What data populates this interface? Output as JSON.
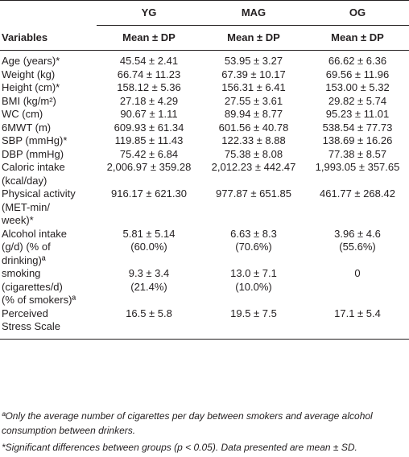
{
  "headers": {
    "groups": [
      "YG",
      "MAG",
      "OG"
    ],
    "variables": "Variables",
    "stat": "Mean ± DP"
  },
  "rows": [
    {
      "label": [
        "Age (years)*"
      ],
      "yg": [
        "45.54 ± 2.41"
      ],
      "mag": [
        "53.95 ± 3.27"
      ],
      "og": [
        "66.62 ± 6.36"
      ]
    },
    {
      "label": [
        "Weight (kg)"
      ],
      "yg": [
        "66.74 ± 11.23"
      ],
      "mag": [
        "67.39 ± 10.17"
      ],
      "og": [
        "69.56 ± 11.96"
      ]
    },
    {
      "label": [
        "Height (cm)*"
      ],
      "yg": [
        "158.12 ± 5.36"
      ],
      "mag": [
        "156.31 ± 6.41"
      ],
      "og": [
        "153.00 ± 5.32"
      ]
    },
    {
      "label": [
        "BMI (kg/m²)"
      ],
      "yg": [
        "27.18 ± 4.29"
      ],
      "mag": [
        "27.55 ± 3.61"
      ],
      "og": [
        "29.82 ± 5.74"
      ]
    },
    {
      "label": [
        "WC (cm)"
      ],
      "yg": [
        "90.67 ± 1.11"
      ],
      "mag": [
        "89.94 ± 8.77"
      ],
      "og": [
        "95.23 ± 11.01"
      ]
    },
    {
      "label": [
        "6MWT (m)"
      ],
      "yg": [
        "609.93 ± 61.34"
      ],
      "mag": [
        "601.56 ± 40.78"
      ],
      "og": [
        "538.54 ± 77.73"
      ]
    },
    {
      "label": [
        "SBP (mmHg)*"
      ],
      "yg": [
        "119.85 ± 11.43"
      ],
      "mag": [
        "122.33 ± 8.88"
      ],
      "og": [
        "138.69 ± 16.26"
      ]
    },
    {
      "label": [
        "DBP (mmHg)"
      ],
      "yg": [
        "75.42 ± 6.84"
      ],
      "mag": [
        "75.38 ± 8.08"
      ],
      "og": [
        "77.38 ± 8.57"
      ]
    },
    {
      "label": [
        "Caloric intake",
        "(kcal/day)"
      ],
      "yg": [
        "2,006.97 ± 359.28"
      ],
      "mag": [
        "2,012.23 ± 442.47"
      ],
      "og": [
        "1,993.05 ± 357.65"
      ]
    },
    {
      "label": [
        "Physical activity",
        "(MET-min/",
        "week)*"
      ],
      "yg": [
        "916.17 ± 621.30"
      ],
      "mag": [
        "977.87 ± 651.85"
      ],
      "og": [
        "461.77 ± 268.42"
      ]
    },
    {
      "label": [
        "Alcohol intake",
        "(g/d) (% of",
        "drinking)ª"
      ],
      "yg": [
        "5.81 ± 5.14",
        "(60.0%)"
      ],
      "mag": [
        "6.63 ± 8.3",
        "(70.6%)"
      ],
      "og": [
        "3.96 ± 4.6",
        "(55.6%)"
      ]
    },
    {
      "label": [
        "smoking",
        "(cigarettes/d)",
        "(% of smokers)ª"
      ],
      "yg": [
        "9.3 ± 3.4",
        "(21.4%)"
      ],
      "mag": [
        "13.0 ± 7.1",
        "(10.0%)"
      ],
      "og": [
        "0"
      ]
    },
    {
      "label": [
        "Perceived",
        "Stress Scale"
      ],
      "yg": [
        "16.5 ± 5.8"
      ],
      "mag": [
        "19.5 ± 7.5"
      ],
      "og": [
        "17.1 ± 5.4"
      ]
    }
  ],
  "notes": [
    "ªOnly the average number of cigarettes per day between smokers and average alcohol consumption between drinkers.",
    "*Significant differences between groups (p < 0.05). Data presented are mean ± SD."
  ]
}
